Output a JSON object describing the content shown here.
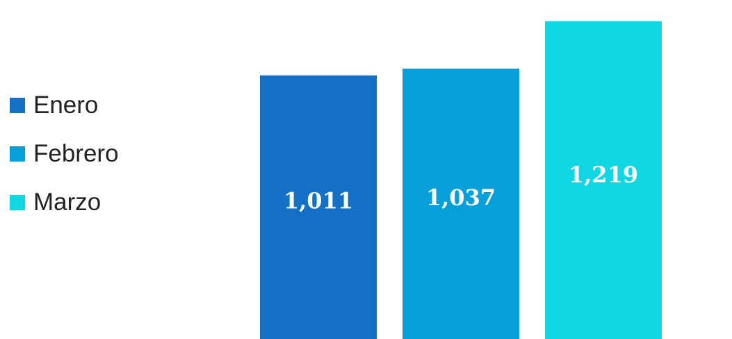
{
  "chart_data": {
    "type": "bar",
    "categories": [
      "Enero",
      "Febrero",
      "Marzo"
    ],
    "values": [
      1011,
      1037,
      1219
    ],
    "value_labels": [
      "1,011",
      "1,037",
      "1,219"
    ],
    "colors": [
      "#1370C6",
      "#069FDA",
      "#10D7E3"
    ],
    "legend_position": "left",
    "grid": false,
    "ylim": [
      0,
      1300
    ]
  },
  "legend": {
    "items": [
      {
        "label": "Enero",
        "color": "#1370C6"
      },
      {
        "label": "Febrero",
        "color": "#069FDA"
      },
      {
        "label": "Marzo",
        "color": "#10D7E3"
      }
    ]
  }
}
